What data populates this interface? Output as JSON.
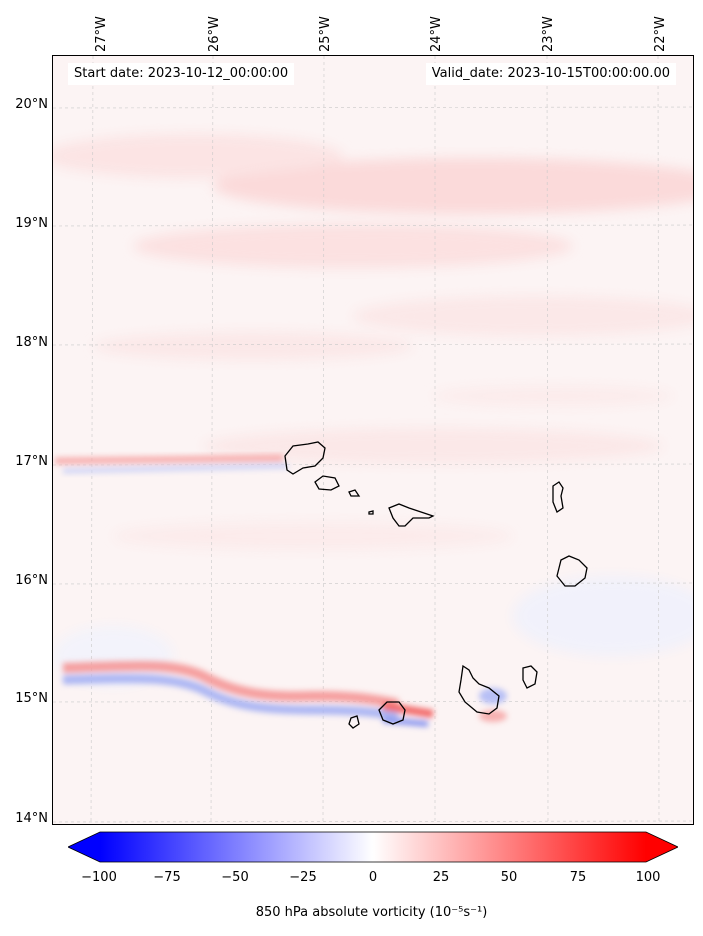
{
  "header": {
    "start_date": "Start date: 2023-10-12_00:00:00",
    "valid_date": "Valid_date: 2023-10-15T00:00:00.00"
  },
  "axes": {
    "lon_labels": [
      "27°W",
      "26°W",
      "25°W",
      "24°W",
      "23°W",
      "22°W"
    ],
    "lat_labels": [
      "20°N",
      "19°N",
      "18°N",
      "17°N",
      "16°N",
      "15°N",
      "14°N"
    ]
  },
  "colorbar": {
    "ticks": [
      "−100",
      "−75",
      "−50",
      "−25",
      "0",
      "25",
      "50",
      "75",
      "100"
    ],
    "range": [
      -100,
      100
    ],
    "label": "850 hPa absolute vorticity (10⁻⁵s⁻¹)",
    "colors": {
      "min": "#0000ff",
      "mid": "#ffffff",
      "max": "#ff0000"
    }
  },
  "map": {
    "background_color": "#fcf4f4",
    "gridlines": true,
    "coastline_color": "#000000",
    "features": [
      "vorticity streak near 17°N",
      "vorticity streak near 15°N",
      "Cape Verde islands"
    ]
  }
}
